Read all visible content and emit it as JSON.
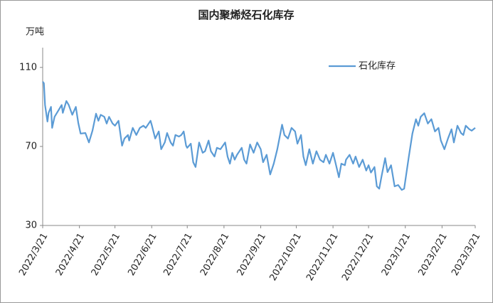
{
  "chart_data": {
    "type": "line",
    "title": "国内聚烯烃石化库存",
    "y_label": "万吨",
    "x": [
      "2022/3/21",
      "2022/3/22",
      "2022/3/23",
      "2022/3/25",
      "2022/3/26",
      "2022/3/28",
      "2022/3/29",
      "2022/3/31",
      "2022/4/3",
      "2022/4/6",
      "2022/4/7",
      "2022/4/10",
      "2022/4/12",
      "2022/4/15",
      "2022/4/18",
      "2022/4/20",
      "2022/4/22",
      "2022/4/26",
      "2022/4/29",
      "2022/5/2",
      "2022/5/5",
      "2022/5/7",
      "2022/5/9",
      "2022/5/12",
      "2022/5/14",
      "2022/5/16",
      "2022/5/19",
      "2022/5/21",
      "2022/5/24",
      "2022/5/27",
      "2022/5/29",
      "2022/6/1",
      "2022/6/2",
      "2022/6/5",
      "2022/6/8",
      "2022/6/11",
      "2022/6/14",
      "2022/6/16",
      "2022/6/20",
      "2022/6/21",
      "2022/6/24",
      "2022/6/27",
      "2022/6/29",
      "2022/7/2",
      "2022/7/4",
      "2022/7/7",
      "2022/7/9",
      "2022/7/11",
      "2022/7/14",
      "2022/7/16",
      "2022/7/18",
      "2022/7/20",
      "2022/7/21",
      "2022/7/24",
      "2022/7/26",
      "2022/7/28",
      "2022/7/31",
      "2022/8/3",
      "2022/8/5",
      "2022/8/8",
      "2022/8/10",
      "2022/8/13",
      "2022/8/15",
      "2022/8/18",
      "2022/8/22",
      "2022/8/24",
      "2022/8/26",
      "2022/8/28",
      "2022/8/30",
      "2022/9/1",
      "2022/9/5",
      "2022/9/7",
      "2022/9/9",
      "2022/9/12",
      "2022/9/15",
      "2022/9/18",
      "2022/9/21",
      "2022/9/23",
      "2022/9/26",
      "2022/9/29",
      "2022/10/2",
      "2022/10/5",
      "2022/10/9",
      "2022/10/11",
      "2022/10/14",
      "2022/10/17",
      "2022/10/20",
      "2022/10/22",
      "2022/10/25",
      "2022/10/27",
      "2022/10/29",
      "2022/11/1",
      "2022/11/4",
      "2022/11/7",
      "2022/11/10",
      "2022/11/13",
      "2022/11/15",
      "2022/11/18",
      "2022/11/21",
      "2022/11/23",
      "2022/11/26",
      "2022/11/28",
      "2022/12/1",
      "2022/12/2",
      "2022/12/5",
      "2022/12/8",
      "2022/12/10",
      "2022/12/13",
      "2022/12/16",
      "2022/12/19",
      "2022/12/21",
      "2022/12/23",
      "2022/12/26",
      "2022/12/28",
      "2022/12/30",
      "2023/1/1",
      "2023/1/4",
      "2023/1/6",
      "2023/1/9",
      "2023/1/12",
      "2023/1/15",
      "2023/1/18",
      "2023/1/20",
      "2023/1/24",
      "2023/1/27",
      "2023/1/30",
      "2023/2/1",
      "2023/2/3",
      "2023/2/6",
      "2023/2/9",
      "2023/2/12",
      "2023/2/15",
      "2023/2/18",
      "2023/2/20",
      "2023/2/23",
      "2023/2/26",
      "2023/3/1",
      "2023/3/3",
      "2023/3/6",
      "2023/3/9",
      "2023/3/11",
      "2023/3/13",
      "2023/3/16",
      "2023/3/18",
      "2023/3/21"
    ],
    "series": [
      {
        "name": "石化库存",
        "color": "#5b9bd5",
        "values": [
          102.8,
          102,
          91,
          82.6,
          87,
          90,
          79.4,
          85,
          88,
          91,
          87,
          93,
          91,
          86,
          90,
          82,
          76.5,
          76.8,
          72,
          78,
          86.6,
          83,
          86,
          85,
          81.6,
          85,
          81.6,
          80.5,
          83,
          70.4,
          74,
          75.8,
          73,
          79.4,
          75.8,
          79.4,
          80.5,
          79.4,
          83,
          81,
          74,
          77.6,
          68.6,
          72,
          76.8,
          72,
          70.4,
          75.8,
          75,
          75.8,
          77.6,
          70.4,
          69.3,
          71.4,
          62,
          59.6,
          72,
          66.8,
          67.6,
          73,
          67.6,
          64.9,
          69.3,
          68.6,
          72,
          64.9,
          61.3,
          66.8,
          63.3,
          65.8,
          69.3,
          63.3,
          61.3,
          71,
          66.8,
          72,
          68.6,
          62,
          65.8,
          55.8,
          61.3,
          68.6,
          81,
          75.8,
          74,
          79.4,
          77.6,
          71.4,
          75.8,
          64.9,
          60.5,
          68.6,
          61.3,
          67.6,
          63.3,
          62,
          65.8,
          61.3,
          66.8,
          62,
          54.4,
          61.3,
          60.5,
          63.3,
          65.8,
          61.3,
          64.9,
          59.6,
          63.3,
          57.8,
          60.5,
          56.8,
          59.6,
          49.8,
          48.6,
          55,
          64.1,
          57,
          60.5,
          49.8,
          50.5,
          48,
          48.6,
          64.9,
          76.5,
          83.8,
          80.5,
          85,
          86.8,
          81.6,
          83.8,
          77.6,
          79.4,
          73,
          68.6,
          74,
          78.7,
          72,
          80.5,
          76.8,
          75.8,
          80.5,
          78.7,
          78,
          79.4
        ]
      }
    ],
    "xlim": [
      "2022/3/21",
      "2023/3/21"
    ],
    "xticks": [
      "2022/3/21",
      "2022/4/21",
      "2022/5/21",
      "2022/6/21",
      "2022/7/21",
      "2022/8/21",
      "2022/9/21",
      "2022/10/21",
      "2022/11/21",
      "2022/12/21",
      "2023/1/21",
      "2023/2/21",
      "2023/3/21"
    ],
    "ylim": [
      30,
      120
    ],
    "yticks": [
      30,
      70,
      110
    ],
    "grid": false,
    "legend": "upper right"
  }
}
